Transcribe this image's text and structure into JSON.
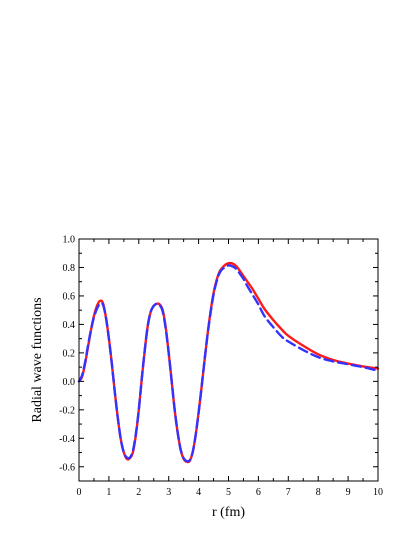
{
  "chart_data": {
    "type": "line",
    "title": "",
    "xlabel": "r (fm)",
    "ylabel": "Radial wave functions",
    "xlim": [
      0,
      10
    ],
    "ylim": [
      -0.7,
      1.0
    ],
    "grid": false,
    "legend": "none",
    "x_ticks": [
      "0",
      "1",
      "2",
      "3",
      "4",
      "5",
      "6",
      "7",
      "8",
      "9",
      "10"
    ],
    "y_ticks": [
      "-0.6",
      "-0.4",
      "-0.2",
      "0.0",
      "0.2",
      "0.4",
      "0.6",
      "0.8",
      "1.0"
    ],
    "series": [
      {
        "color": "#ff1a1a",
        "style": "solid",
        "x": [
          0,
          0.1,
          0.2,
          0.3,
          0.4,
          0.5,
          0.6,
          0.7,
          0.8,
          0.9,
          1.0,
          1.1,
          1.2,
          1.3,
          1.4,
          1.5,
          1.6,
          1.7,
          1.8,
          1.9,
          2.0,
          2.1,
          2.2,
          2.3,
          2.4,
          2.5,
          2.6,
          2.7,
          2.8,
          2.9,
          3.0,
          3.1,
          3.2,
          3.3,
          3.4,
          3.5,
          3.6,
          3.7,
          3.8,
          3.9,
          4.0,
          4.1,
          4.2,
          4.3,
          4.4,
          4.5,
          4.6,
          4.7,
          4.8,
          4.9,
          5.0,
          5.1,
          5.2,
          5.3,
          5.4,
          5.5,
          5.6,
          5.8,
          6.0,
          6.2,
          6.5,
          6.8,
          7.0,
          7.5,
          8.0,
          8.5,
          9.0,
          9.5,
          10.0
        ],
        "y": [
          0.0,
          0.03,
          0.12,
          0.24,
          0.36,
          0.46,
          0.53,
          0.565,
          0.55,
          0.45,
          0.3,
          0.12,
          -0.08,
          -0.26,
          -0.41,
          -0.5,
          -0.545,
          -0.54,
          -0.5,
          -0.38,
          -0.2,
          0.02,
          0.22,
          0.39,
          0.49,
          0.53,
          0.545,
          0.54,
          0.5,
          0.38,
          0.2,
          0.0,
          -0.2,
          -0.36,
          -0.48,
          -0.545,
          -0.565,
          -0.56,
          -0.5,
          -0.38,
          -0.22,
          -0.04,
          0.15,
          0.33,
          0.49,
          0.62,
          0.71,
          0.77,
          0.8,
          0.82,
          0.83,
          0.83,
          0.82,
          0.8,
          0.77,
          0.74,
          0.71,
          0.65,
          0.58,
          0.51,
          0.43,
          0.36,
          0.32,
          0.25,
          0.19,
          0.15,
          0.125,
          0.105,
          0.09
        ]
      },
      {
        "color": "#3333ff",
        "style": "dashed",
        "x": [
          0,
          0.1,
          0.2,
          0.3,
          0.4,
          0.5,
          0.6,
          0.7,
          0.8,
          0.9,
          1.0,
          1.1,
          1.2,
          1.3,
          1.4,
          1.5,
          1.6,
          1.7,
          1.8,
          1.9,
          2.0,
          2.1,
          2.2,
          2.3,
          2.4,
          2.5,
          2.6,
          2.7,
          2.8,
          2.9,
          3.0,
          3.1,
          3.2,
          3.3,
          3.4,
          3.5,
          3.6,
          3.7,
          3.8,
          3.9,
          4.0,
          4.1,
          4.2,
          4.3,
          4.4,
          4.5,
          4.6,
          4.7,
          4.8,
          4.9,
          5.0,
          5.1,
          5.2,
          5.3,
          5.4,
          5.5,
          5.6,
          5.8,
          6.0,
          6.2,
          6.5,
          6.8,
          7.0,
          7.5,
          8.0,
          8.5,
          9.0,
          9.5,
          10.0
        ],
        "y": [
          0.0,
          0.04,
          0.13,
          0.25,
          0.36,
          0.45,
          0.51,
          0.545,
          0.54,
          0.45,
          0.3,
          0.12,
          -0.08,
          -0.26,
          -0.41,
          -0.5,
          -0.535,
          -0.535,
          -0.49,
          -0.37,
          -0.2,
          0.02,
          0.22,
          0.39,
          0.49,
          0.53,
          0.545,
          0.535,
          0.49,
          0.37,
          0.2,
          0.0,
          -0.2,
          -0.36,
          -0.48,
          -0.54,
          -0.56,
          -0.555,
          -0.5,
          -0.38,
          -0.22,
          -0.04,
          0.15,
          0.33,
          0.48,
          0.61,
          0.7,
          0.76,
          0.79,
          0.8,
          0.815,
          0.81,
          0.8,
          0.78,
          0.75,
          0.72,
          0.68,
          0.61,
          0.54,
          0.46,
          0.38,
          0.31,
          0.28,
          0.22,
          0.17,
          0.14,
          0.12,
          0.1,
          0.075
        ]
      }
    ]
  }
}
